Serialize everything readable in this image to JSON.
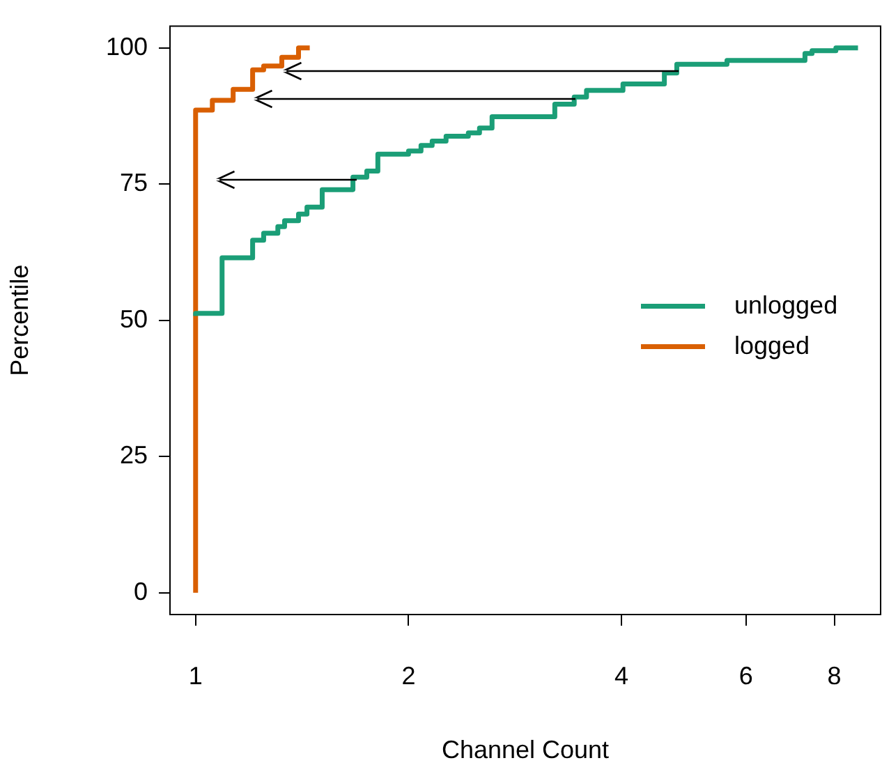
{
  "chart_data": {
    "type": "step",
    "xlabel": "Channel Count",
    "ylabel": "Percentile",
    "log": "x",
    "xlim": [
      0.92,
      9.3
    ],
    "xticks": [
      1,
      2,
      4,
      6,
      8
    ],
    "ylim": [
      -4,
      104
    ],
    "yticks": [
      0,
      25,
      50,
      75,
      100
    ],
    "grid": false,
    "legend": "right",
    "marker": "none",
    "line_style": "solid",
    "series": [
      {
        "name": "unlogged",
        "color": "#1b9e77",
        "x": [
          1,
          1.09,
          1.204,
          1.248,
          1.307,
          1.336,
          1.398,
          1.437,
          1.51,
          1.669,
          1.746,
          1.81,
          2.0,
          2.083,
          2.16,
          2.26,
          2.43,
          2.52,
          2.625,
          3.22,
          3.43,
          3.57,
          4.02,
          4.6,
          4.79,
          5.64,
          7.27,
          7.44,
          8.04,
          8.64
        ],
        "values": [
          50.8,
          51.3,
          61.5,
          64.7,
          66,
          67.2,
          68.3,
          69.5,
          70.8,
          74,
          76.3,
          77.4,
          80.5,
          81.1,
          82.1,
          82.9,
          83.8,
          84.4,
          85.3,
          87.4,
          89.7,
          91,
          92.2,
          93.4,
          95.4,
          97,
          97.7,
          99,
          99.5,
          100
        ]
      },
      {
        "name": "logged",
        "color": "#d95f02",
        "x": [
          1,
          1,
          1.056,
          1.13,
          1.204,
          1.248,
          1.324,
          1.398,
          1.45
        ],
        "values": [
          0,
          88.4,
          88.6,
          90.4,
          92.4,
          96.0,
          96.7,
          98.3,
          100
        ]
      }
    ]
  }
}
